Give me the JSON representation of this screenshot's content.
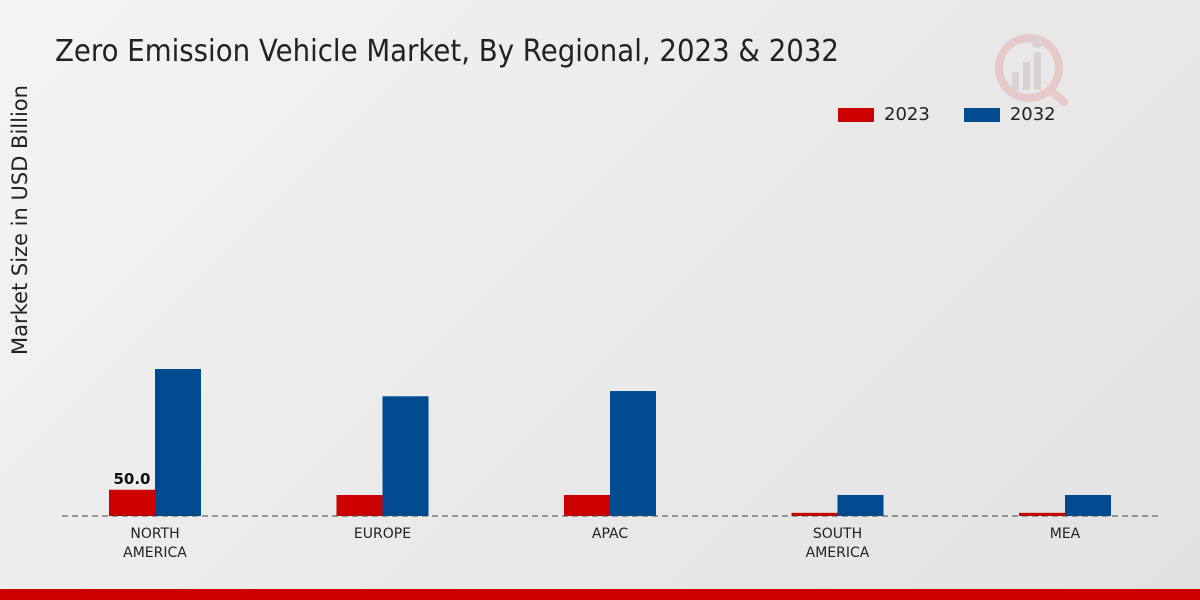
{
  "chart_data": {
    "type": "bar",
    "title": "Zero Emission Vehicle Market, By Regional, 2023 & 2032",
    "ylabel": "Market Size in USD Billion",
    "xlabel": "",
    "categories": [
      "NORTH\nAMERICA",
      "EUROPE",
      "APAC",
      "SOUTH\nAMERICA",
      "MEA"
    ],
    "series": [
      {
        "name": "2023",
        "color": "#cc0000",
        "values": [
          50.0,
          40.0,
          40.0,
          6.0,
          6.0
        ]
      },
      {
        "name": "2032",
        "color": "#004a8f",
        "values": [
          280.0,
          228.0,
          238.0,
          40.0,
          40.0
        ]
      }
    ],
    "data_labels": [
      {
        "series": 0,
        "index": 0,
        "text": "50.0"
      }
    ],
    "ylim": [
      0,
      400
    ],
    "legend_position": "top-right",
    "grid": false
  },
  "colors": {
    "brand_red": "#cc0000",
    "brand_blue": "#004a8f"
  }
}
